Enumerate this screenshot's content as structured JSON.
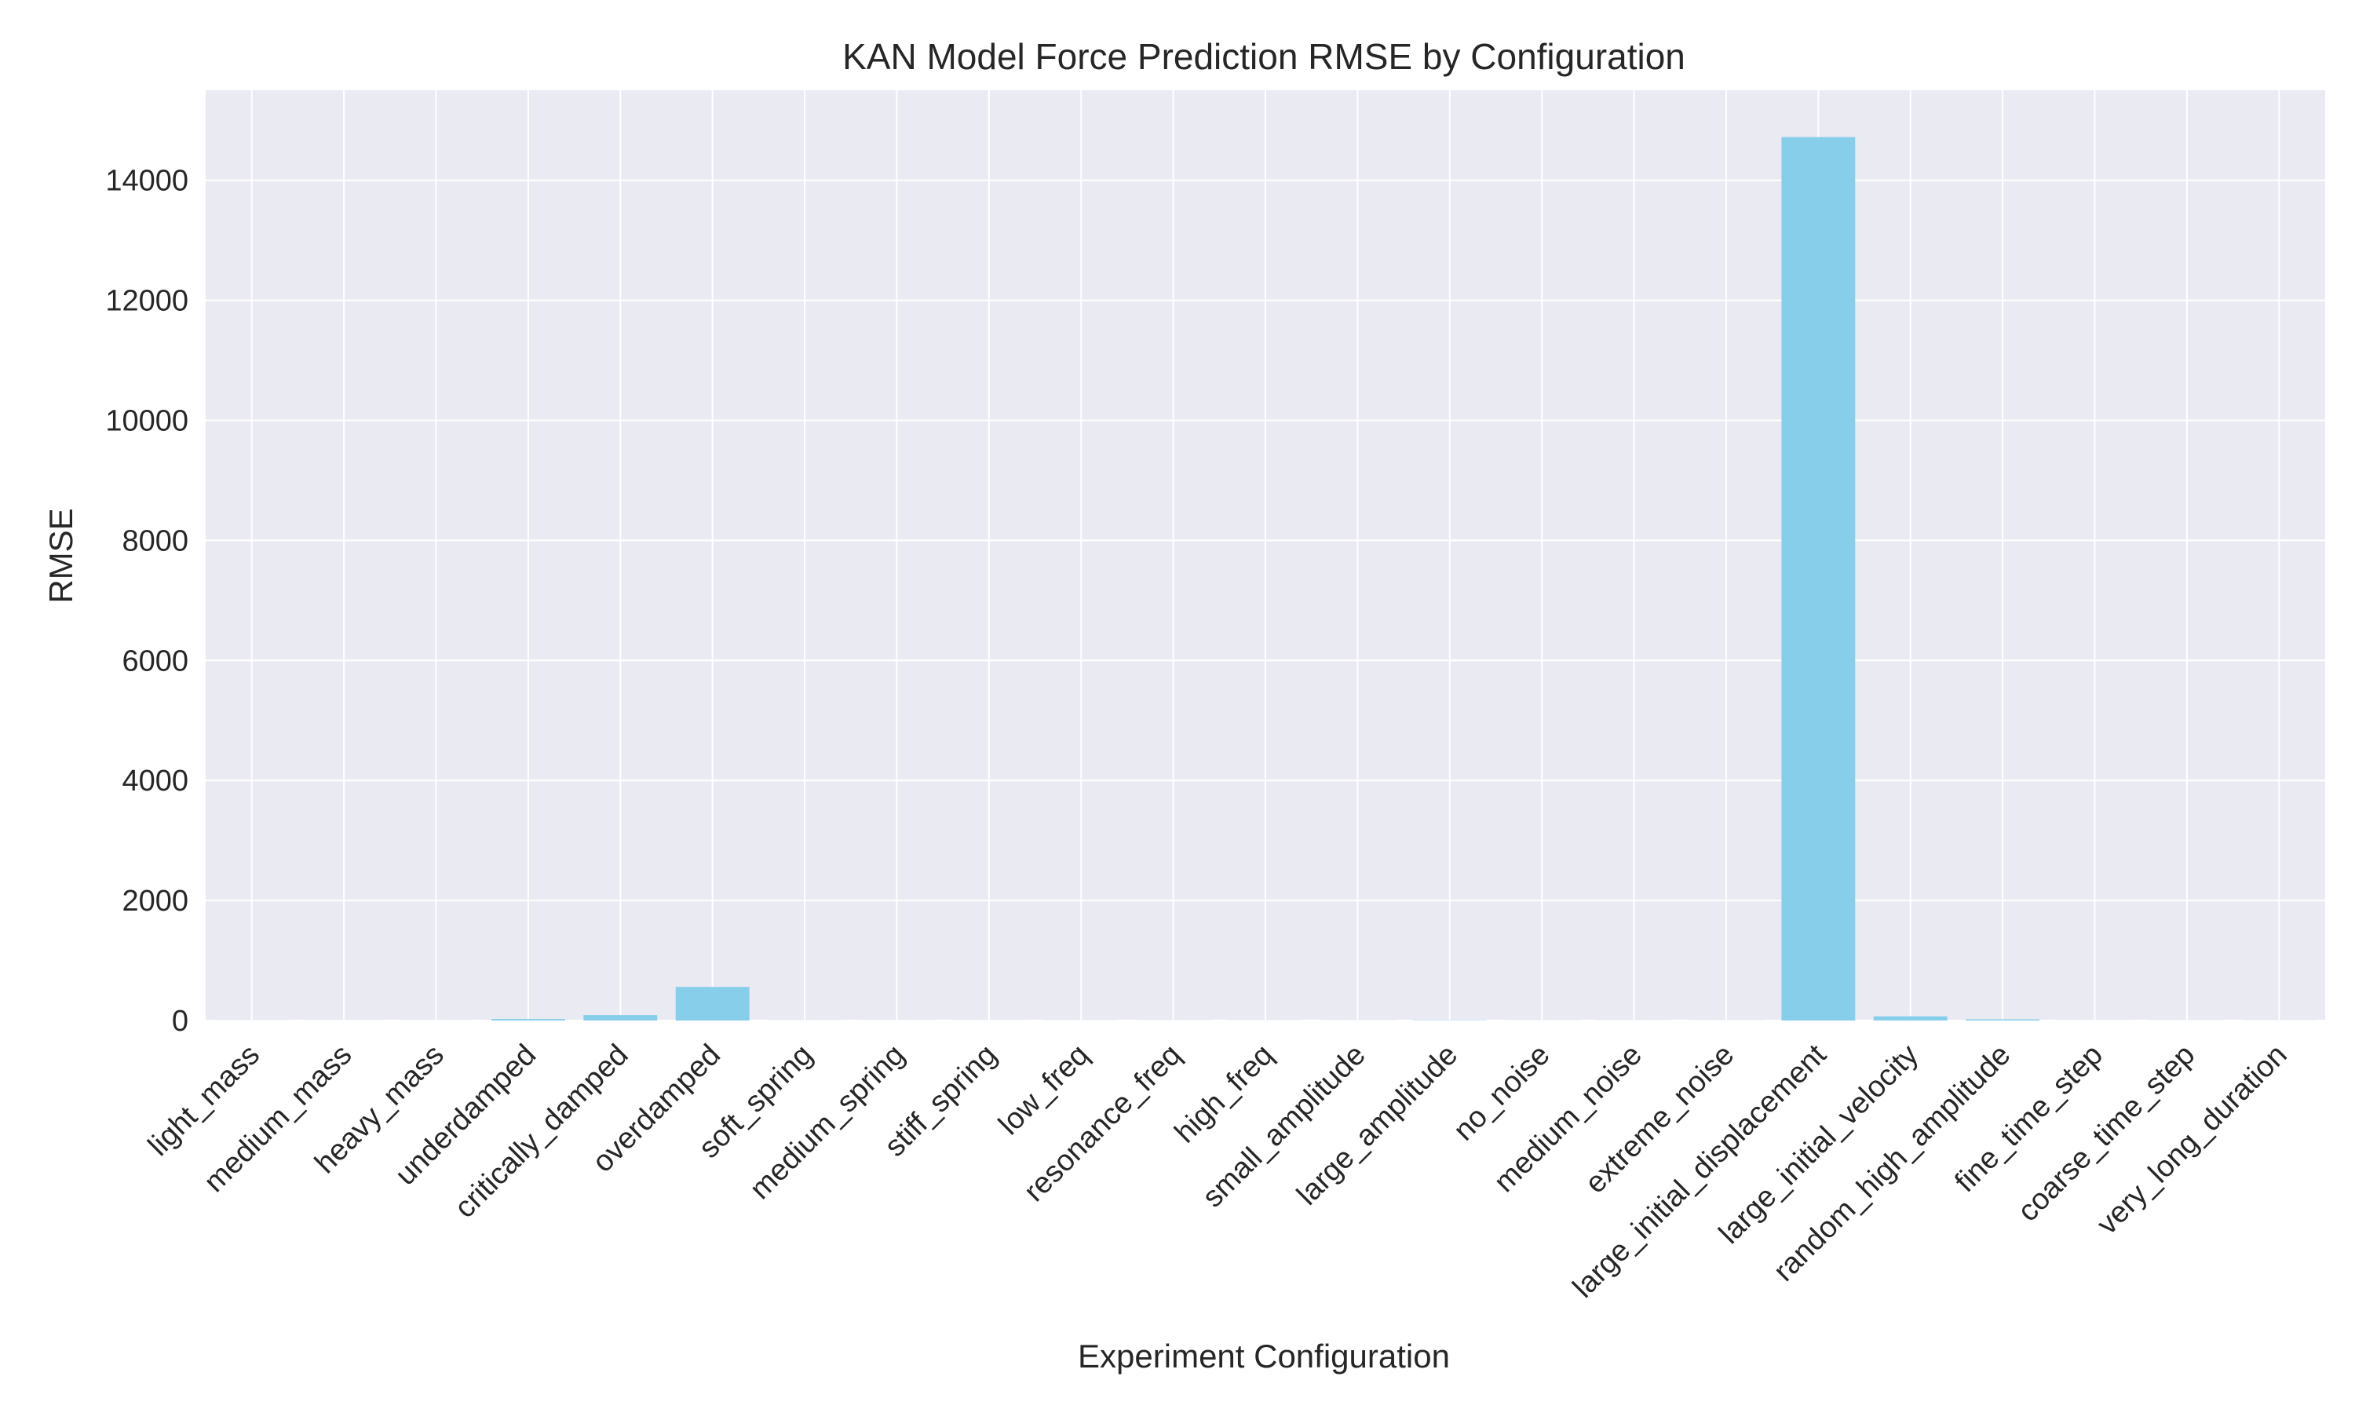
{
  "chart_data": {
    "type": "bar",
    "title": "KAN Model Force Prediction RMSE by Configuration",
    "xlabel": "Experiment Configuration",
    "ylabel": "RMSE",
    "categories": [
      "light_mass",
      "medium_mass",
      "heavy_mass",
      "underdamped",
      "critically_damped",
      "overdamped",
      "soft_spring",
      "medium_spring",
      "stiff_spring",
      "low_freq",
      "resonance_freq",
      "high_freq",
      "small_amplitude",
      "large_amplitude",
      "no_noise",
      "medium_noise",
      "extreme_noise",
      "large_initial_displacement",
      "large_initial_velocity",
      "random_high_amplitude",
      "fine_time_step",
      "coarse_time_step",
      "very_long_duration"
    ],
    "values": [
      2,
      1,
      1,
      25,
      90,
      560,
      2,
      1,
      1,
      2,
      2,
      2,
      2,
      5,
      2,
      2,
      2,
      14720,
      70,
      20,
      1,
      2,
      2
    ],
    "ylim": [
      0,
      15500
    ],
    "yticks": [
      0,
      2000,
      4000,
      6000,
      8000,
      10000,
      12000,
      14000
    ],
    "grid": true,
    "legend": "none",
    "colors": {
      "bar": "#87ceeb",
      "plot_background": "#eaeaf2",
      "grid": "#ffffff",
      "text": "#262626"
    }
  }
}
